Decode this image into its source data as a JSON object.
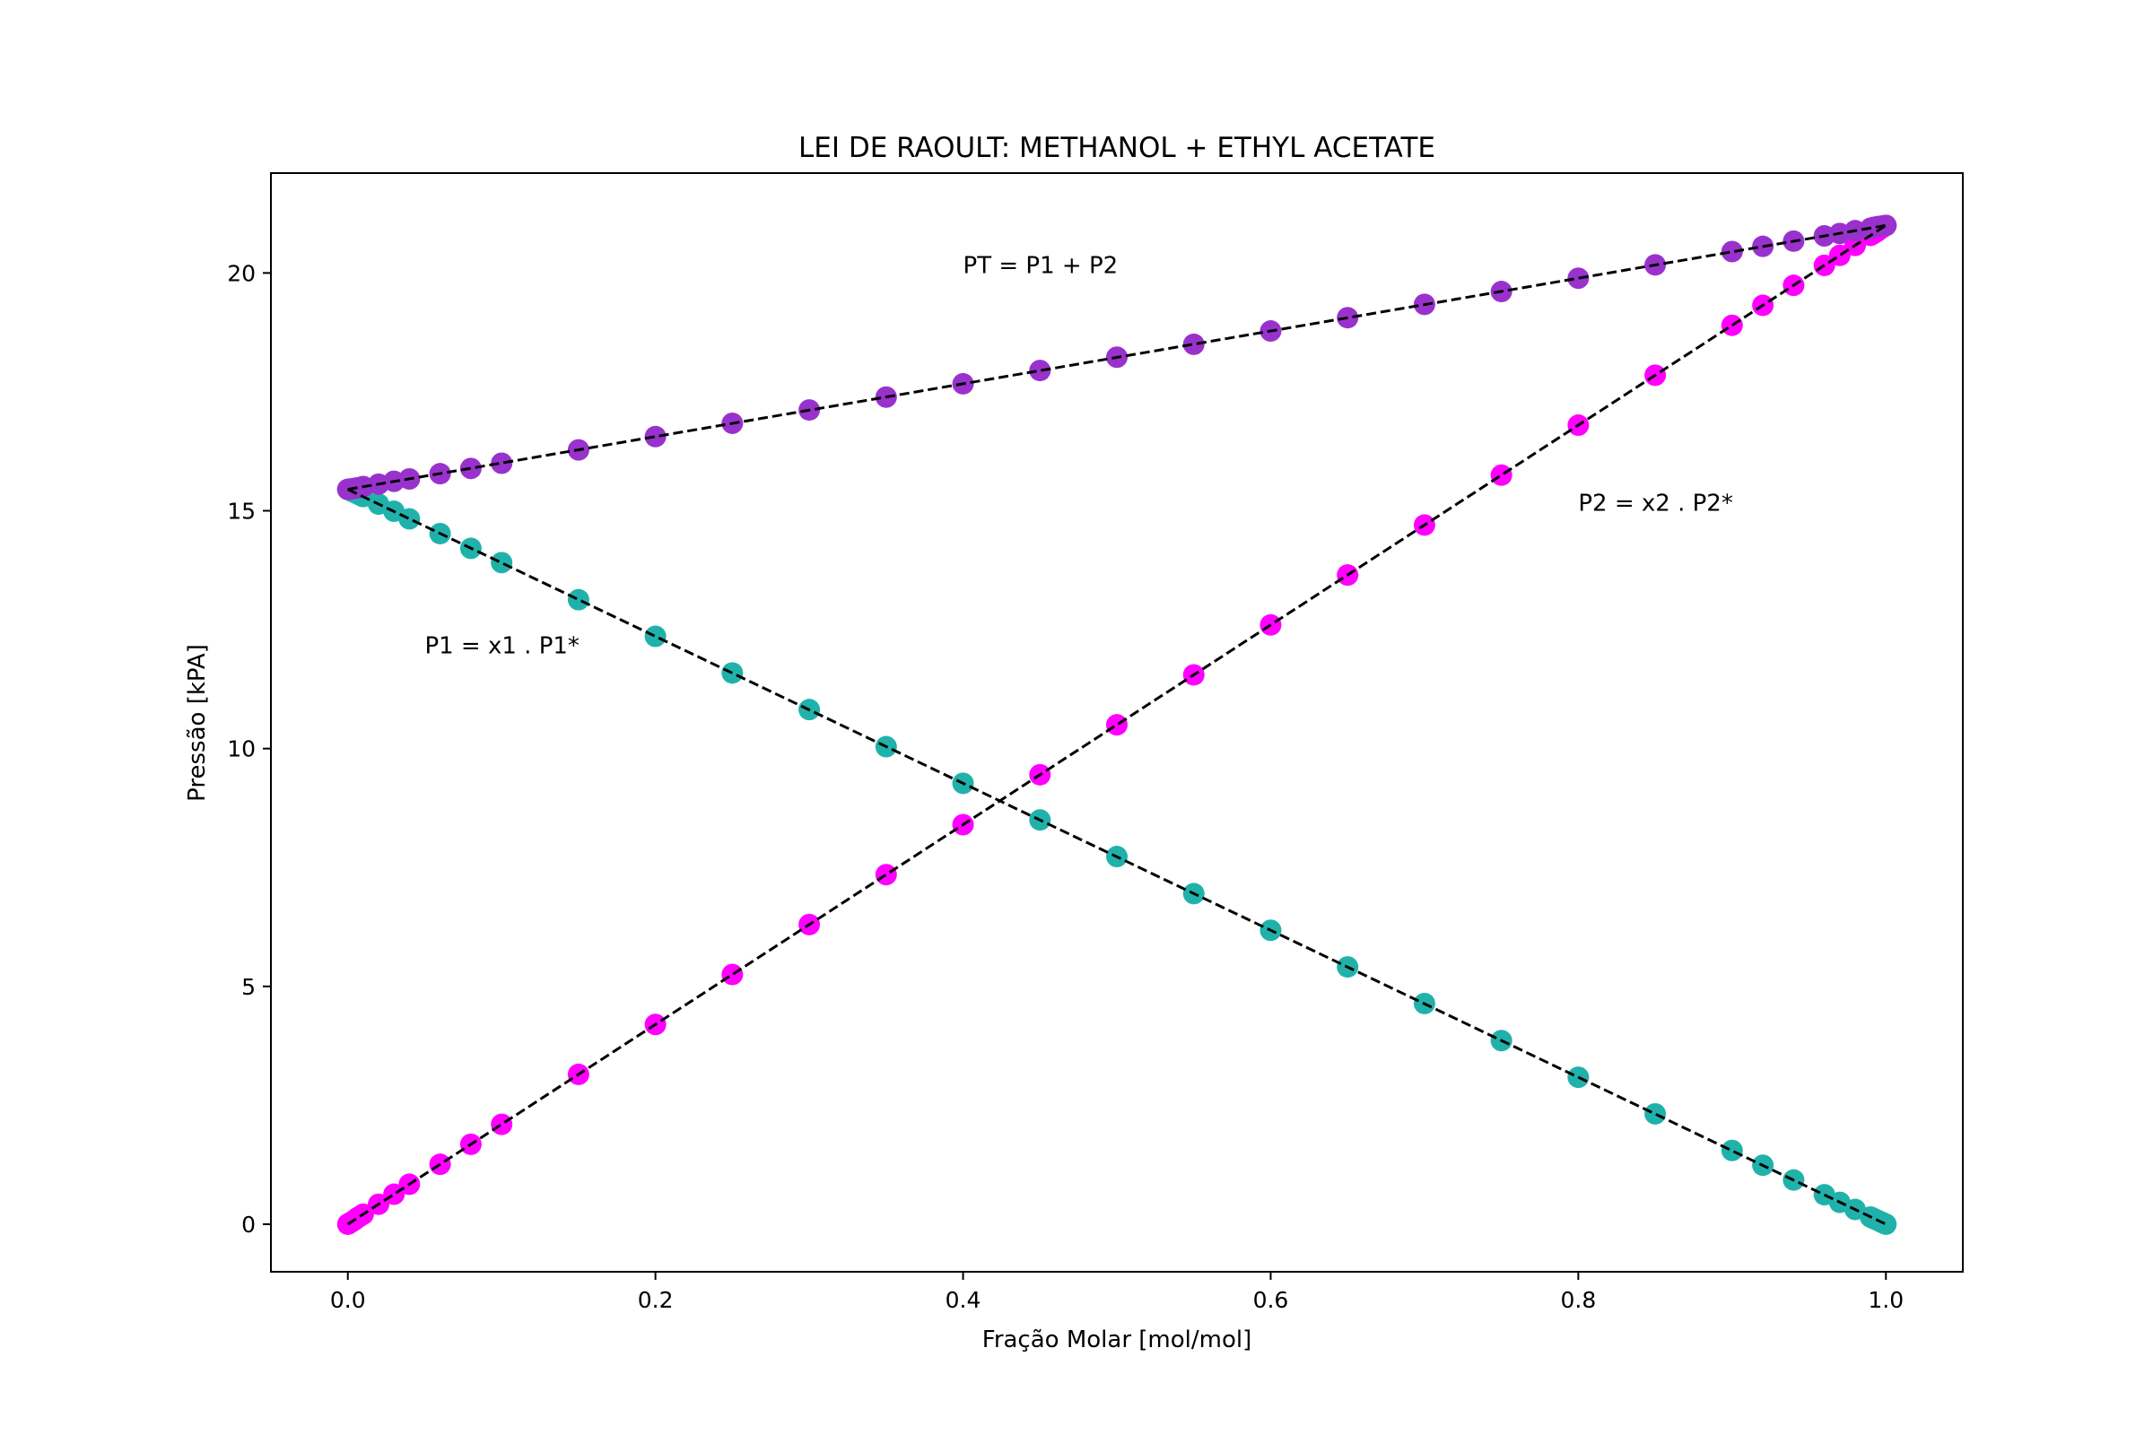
{
  "chart_data": {
    "type": "scatter",
    "title": "LEI DE RAOULT: METHANOL + ETHYL ACETATE",
    "xlabel": "Fração Molar [mol/mol]",
    "ylabel": "Pressão [kPA]",
    "xlim": [
      -0.05,
      1.05
    ],
    "ylim": [
      -1.0,
      22.1
    ],
    "xticks": [
      0.0,
      0.2,
      0.4,
      0.6,
      0.8,
      1.0
    ],
    "xtick_labels": [
      "0.0",
      "0.2",
      "0.4",
      "0.6",
      "0.8",
      "1.0"
    ],
    "yticks": [
      0,
      5,
      10,
      15,
      20
    ],
    "ytick_labels": [
      "0",
      "5",
      "10",
      "15",
      "20"
    ],
    "grid": false,
    "x": [
      0.0,
      0.002,
      0.004,
      0.006,
      0.008,
      0.01,
      0.02,
      0.03,
      0.04,
      0.06,
      0.08,
      0.1,
      0.15,
      0.2,
      0.25,
      0.3,
      0.35,
      0.4,
      0.45,
      0.5,
      0.55,
      0.6,
      0.65,
      0.7,
      0.75,
      0.8,
      0.85,
      0.9,
      0.92,
      0.94,
      0.96,
      0.97,
      0.98,
      0.99,
      0.992,
      0.994,
      0.996,
      0.998,
      1.0
    ],
    "P1_star": 15.45,
    "P2_star": 21.0,
    "series": [
      {
        "color": "#20B2AA",
        "values": [
          15.45,
          15.42,
          15.39,
          15.36,
          15.33,
          15.3,
          15.14,
          14.99,
          14.83,
          14.52,
          14.21,
          13.91,
          13.13,
          12.36,
          11.59,
          10.82,
          10.04,
          9.27,
          8.5,
          7.73,
          6.95,
          6.18,
          5.41,
          4.64,
          3.86,
          3.09,
          2.32,
          1.55,
          1.24,
          0.93,
          0.62,
          0.46,
          0.31,
          0.15,
          0.12,
          0.09,
          0.06,
          0.03,
          0.0
        ]
      },
      {
        "color": "#FF00FF",
        "values": [
          0.0,
          0.04,
          0.08,
          0.13,
          0.17,
          0.21,
          0.42,
          0.63,
          0.84,
          1.26,
          1.68,
          2.1,
          3.15,
          4.2,
          5.25,
          6.3,
          7.35,
          8.4,
          9.45,
          10.5,
          11.55,
          12.6,
          13.65,
          14.7,
          15.75,
          16.8,
          17.85,
          18.9,
          19.32,
          19.74,
          20.16,
          20.37,
          20.58,
          20.79,
          20.83,
          20.87,
          20.92,
          20.96,
          21.0
        ]
      },
      {
        "color": "#9932CC",
        "values": [
          15.45,
          15.46,
          15.47,
          15.48,
          15.49,
          15.51,
          15.56,
          15.62,
          15.67,
          15.78,
          15.89,
          16.0,
          16.28,
          16.56,
          16.84,
          17.12,
          17.39,
          17.67,
          17.95,
          18.23,
          18.5,
          18.78,
          19.06,
          19.34,
          19.61,
          19.89,
          20.17,
          20.45,
          20.56,
          20.67,
          20.78,
          20.83,
          20.89,
          20.94,
          20.96,
          20.97,
          20.98,
          20.99,
          21.0
        ]
      }
    ],
    "fit_line_style": "dashed-black",
    "annotations": [
      {
        "text": "PT = P1 + P2",
        "x": 0.4,
        "y": 20.0
      },
      {
        "text": "P2 = x2 . P2*",
        "x": 0.8,
        "y": 15.0
      },
      {
        "text": "P1 = x1 . P1*",
        "x": 0.05,
        "y": 12.0
      }
    ]
  }
}
